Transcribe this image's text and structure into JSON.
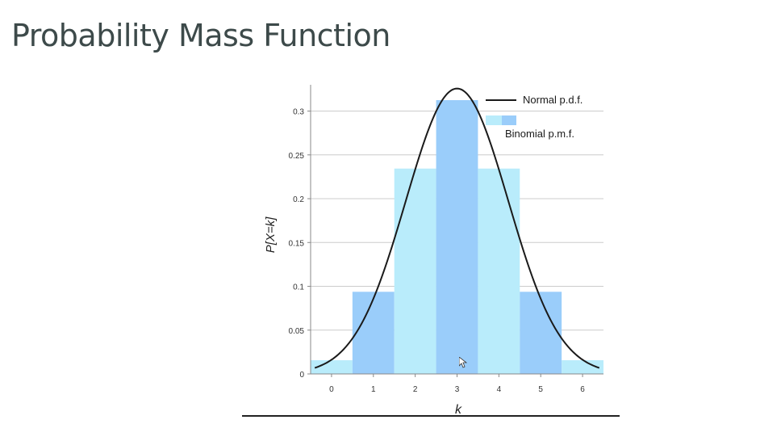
{
  "slide": {
    "title": "Probability Mass Function"
  },
  "chart_data": {
    "type": "bar",
    "x": [
      0,
      1,
      2,
      3,
      4,
      5,
      6
    ],
    "values": [
      0.015625,
      0.09375,
      0.234375,
      0.3125,
      0.234375,
      0.09375,
      0.015625
    ],
    "xlabel": "k",
    "ylabel": "P[X=k]",
    "xlim": [
      -0.5,
      6.5
    ],
    "ylim": [
      0,
      0.33
    ],
    "x_ticks": [
      "0",
      "1",
      "2",
      "3",
      "4",
      "5",
      "6"
    ],
    "y_ticks": [
      "0",
      "0.05",
      "0.1",
      "0.15",
      "0.2",
      "0.25",
      "0.3"
    ],
    "grid": true,
    "legend_position": "top-right",
    "series": [
      {
        "name": "Binomial p.m.f.",
        "kind": "bar"
      },
      {
        "name": "Normal p.d.f.",
        "kind": "curve",
        "mean": 3,
        "sd": 1.2247
      }
    ],
    "colors": {
      "bar_light": "#b9ecfb",
      "bar_dark": "#9acdfa",
      "curve": "#1a1a1a",
      "grid": "#cccccc",
      "axis": "#888888"
    }
  }
}
